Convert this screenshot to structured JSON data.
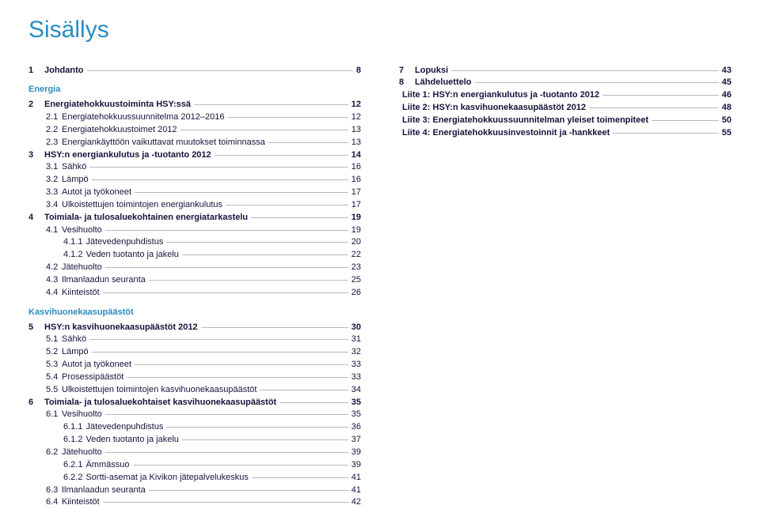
{
  "title": "Sisällys",
  "colors": {
    "heading": "#2a8cc4",
    "text": "#14143c",
    "leader": "#b8b8c0",
    "background": "#ffffff"
  },
  "typography": {
    "title_fontsize_pt": 22,
    "body_fontsize_pt": 8,
    "heading_weight": "bold"
  },
  "left": {
    "groups": [
      {
        "top": {
          "num": "1",
          "label": "Johdanto",
          "page": "8",
          "bold": true
        },
        "heading": "Energia",
        "rows": [
          {
            "num": "2",
            "label": "Energiatehokkuustoiminta HSY:ssä",
            "page": "12",
            "bold": true
          },
          {
            "num": "2.1",
            "label": "Energiatehokkuussuunnitelma 2012–2016",
            "page": "12",
            "indent": 1
          },
          {
            "num": "2.2",
            "label": "Energiatehokkuustoimet 2012",
            "page": "13",
            "indent": 1
          },
          {
            "num": "2.3",
            "label": "Energiankäyttöön vaikuttavat muutokset toiminnassa",
            "page": "13",
            "indent": 1
          },
          {
            "num": "3",
            "label": "HSY:n energiankulutus ja -tuotanto 2012",
            "page": "14",
            "bold": true
          },
          {
            "num": "3.1",
            "label": "Sähkö",
            "page": "16",
            "indent": 1
          },
          {
            "num": "3.2",
            "label": "Lämpö",
            "page": "16",
            "indent": 1
          },
          {
            "num": "3.3",
            "label": "Autot ja työkoneet",
            "page": "17",
            "indent": 1
          },
          {
            "num": "3.4",
            "label": "Ulkoistettujen toimintojen energiankulutus",
            "page": "17",
            "indent": 1
          },
          {
            "num": "4",
            "label": "Toimiala- ja tulosaluekohtainen energiatarkastelu",
            "page": "19",
            "bold": true
          },
          {
            "num": "4.1",
            "label": "Vesihuolto",
            "page": "19",
            "indent": 1
          },
          {
            "num": "4.1.1",
            "label": "Jätevedenpuhdistus",
            "page": "20",
            "indent": 2
          },
          {
            "num": "4.1.2",
            "label": "Veden tuotanto ja jakelu",
            "page": "22",
            "indent": 2
          },
          {
            "num": "4.2",
            "label": "Jätehuolto",
            "page": "23",
            "indent": 1
          },
          {
            "num": "4.3",
            "label": "Ilmanlaadun seuranta",
            "page": "25",
            "indent": 1
          },
          {
            "num": "4.4",
            "label": "Kiinteistöt",
            "page": "26",
            "indent": 1
          }
        ]
      },
      {
        "heading": "Kasvihuonekaasupäästöt",
        "rows": [
          {
            "num": "5",
            "label": "HSY:n kasvihuonekaasupäästöt 2012",
            "page": "30",
            "bold": true
          },
          {
            "num": "5.1",
            "label": "Sähkö",
            "page": "31",
            "indent": 1
          },
          {
            "num": "5.2",
            "label": "Lämpö",
            "page": "32",
            "indent": 1
          },
          {
            "num": "5.3",
            "label": "Autot ja työkoneet",
            "page": "33",
            "indent": 1
          },
          {
            "num": "5.4",
            "label": "Prosessipäästöt",
            "page": "33",
            "indent": 1
          },
          {
            "num": "5.5",
            "label": "Ulkoistettujen toimintojen kasvihuonekaasupäästöt",
            "page": "34",
            "indent": 1
          },
          {
            "num": "6",
            "label": "Toimiala- ja tulosaluekohtaiset kasvihuonekaasupäästöt",
            "page": "35",
            "bold": true
          },
          {
            "num": "6.1",
            "label": "Vesihuolto",
            "page": "35",
            "indent": 1
          },
          {
            "num": "6.1.1",
            "label": "Jätevedenpuhdistus",
            "page": "36",
            "indent": 2
          },
          {
            "num": "6.1.2",
            "label": "Veden tuotanto ja jakelu",
            "page": "37",
            "indent": 2
          },
          {
            "num": "6.2",
            "label": "Jätehuolto",
            "page": "39",
            "indent": 1
          },
          {
            "num": "6.2.1",
            "label": "Ämmässuo",
            "page": "39",
            "indent": 2
          },
          {
            "num": "6.2.2",
            "label": "Sortti-asemat ja Kivikon jätepalvelukeskus",
            "page": "41",
            "indent": 2
          },
          {
            "num": "6.3",
            "label": "Ilmanlaadun seuranta",
            "page": "41",
            "indent": 1
          },
          {
            "num": "6.4",
            "label": "Kiinteistöt",
            "page": "42",
            "indent": 1
          }
        ]
      }
    ]
  },
  "right": {
    "rows": [
      {
        "num": "7",
        "label": "Lopuksi",
        "page": "43",
        "bold": true
      },
      {
        "num": "8",
        "label": "Lähdeluettelo",
        "page": "45",
        "bold": true
      },
      {
        "num": "",
        "label": "Liite 1: HSY:n energiankulutus ja -tuotanto 2012",
        "page": "46",
        "bold": true
      },
      {
        "num": "",
        "label": "Liite 2: HSY:n kasvihuonekaasupäästöt 2012",
        "page": "48",
        "bold": true
      },
      {
        "num": "",
        "label": "Liite 3: Energiatehokkuussuunnitelman yleiset toimenpiteet",
        "page": "50",
        "bold": true
      },
      {
        "num": "",
        "label": "Liite 4: Energiatehokkuusinvestoinnit ja -hankkeet",
        "page": "55",
        "bold": true
      }
    ]
  }
}
